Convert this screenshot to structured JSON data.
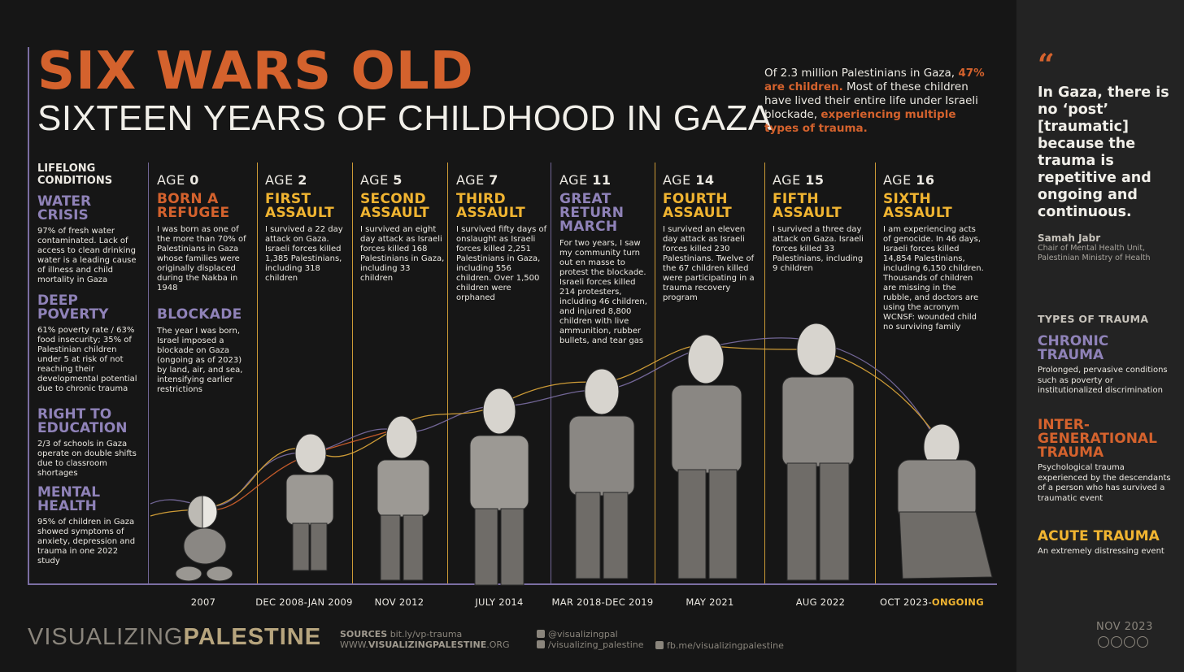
{
  "title": "SIX WARS OLD",
  "subtitle": "SIXTEEN YEARS OF CHILDHOOD IN GAZA",
  "intro": {
    "part1": "Of 2.3 million Palestinians in Gaza, ",
    "highlight1": "47% are children.",
    "part2": " Most of these children have lived their entire life under Israeli blockade, ",
    "highlight2": "experiencing multiple types of trauma."
  },
  "lifelong": {
    "heading": "LIFELONG CONDITIONS",
    "items": [
      {
        "title": "WATER CRISIS",
        "text": "97% of fresh water contaminated. Lack of access to clean drinking water is a leading cause of illness and child mortality in Gaza"
      },
      {
        "title": "DEEP POVERTY",
        "text": "61% poverty rate / 63% food insecurity; 35% of Palestinian children under 5 at risk of not reaching their developmental potential due to chronic trauma"
      },
      {
        "title": "RIGHT TO EDUCATION",
        "text": "2/3 of schools in Gaza operate on double shifts due to classroom shortages"
      },
      {
        "title": "MENTAL HEALTH",
        "text": "95% of children in Gaza showed symptoms of anxiety, depression and trauma in one 2022 study"
      }
    ]
  },
  "age_label": "AGE",
  "stages": [
    {
      "age": "0",
      "title": "BORN A REFUGEE",
      "color": "#d4622d",
      "text": "I was born as one of the more than 70% of Palestinians in Gaza whose families were originally displaced during the Nakba in 1948",
      "title2": "BLOCKADE",
      "text2": "The year I was born, Israel imposed a blockade on Gaza (ongoing as of 2023) by land, air, and sea, intensifying earlier restrictions",
      "date": "2007"
    },
    {
      "age": "2",
      "title": "FIRST ASSAULT",
      "color": "#f0b431",
      "text": "I survived a 22 day attack on Gaza. Israeli forces killed 1,385 Palestinians, including 318 children",
      "date": "DEC 2008-JAN 2009"
    },
    {
      "age": "5",
      "title": "SECOND ASSAULT",
      "color": "#f0b431",
      "text": "I survived an eight day attack as Israeli forces killed 168 Palestinians in Gaza, including 33 children",
      "date": "NOV 2012"
    },
    {
      "age": "7",
      "title": "THIRD ASSAULT",
      "color": "#f0b431",
      "text": "I survived fifty days of onslaught as Israeli forces killed 2,251 Palestinians in Gaza, including 556 children. Over 1,500 children were orphaned",
      "date": "JULY 2014"
    },
    {
      "age": "11",
      "title": "GREAT RETURN MARCH",
      "color": "#8f82b8",
      "text": "For two years, I saw my community turn out en masse to protest the blockade. Israeli forces killed 214 protesters, including 46 children, and injured 8,800 children with live ammunition, rubber bullets, and tear gas",
      "date": "MAR 2018-DEC 2019"
    },
    {
      "age": "14",
      "title": "FOURTH ASSAULT",
      "color": "#f0b431",
      "text": "I survived an eleven day attack as Israeli forces killed 230 Palestinians. Twelve of the 67 children killed were participating in a trauma recovery program",
      "date": "MAY 2021"
    },
    {
      "age": "15",
      "title": "FIFTH ASSAULT",
      "color": "#f0b431",
      "text": "I survived a three day attack on Gaza. Israeli forces killed 33 Palestinians, including 9 children",
      "date": "AUG 2022"
    },
    {
      "age": "16",
      "title": "SIXTH ASSAULT",
      "color": "#f0b431",
      "text": "I am experiencing acts of genocide. In 46 days, Israeli forces killed 14,854 Palestinians, including 6,150 children. Thousands of children are missing in the rubble, and doctors are using the acronym WCNSF: wounded child no surviving family",
      "date": "OCT 2023-",
      "date_highlight": "ONGOING"
    }
  ],
  "brand": {
    "light": "VISUALIZING",
    "bold": "PALESTINE"
  },
  "footer": {
    "sources_label": "SOURCES",
    "sources_link": "bit.ly/vp-trauma",
    "site_prefix": "WWW.",
    "site_bold": "VISUALIZINGPALESTINE",
    "site_suffix": ".ORG",
    "twitter": "@visualizingpal",
    "instagram": "/visualizing_palestine",
    "facebook": "fb.me/visualizingpalestine"
  },
  "quote": {
    "mark": "“",
    "text": "In Gaza, there is no ‘post’ [traumatic] because the trauma is repetitive and ongoing and continuous.",
    "author": "Samah Jabr",
    "role": "Chair of Mental Health Unit, Palestinian Ministry of Health"
  },
  "trauma_types": {
    "heading": "TYPES OF TRAUMA",
    "items": [
      {
        "title": "CHRONIC TRAUMA",
        "color": "#8f82b8",
        "text": "Prolonged, pervasive conditions such as poverty or institutionalized discrimination"
      },
      {
        "title": "INTER-GENERATIONAL TRAUMA",
        "color": "#d4622d",
        "text": "Psychological trauma experienced by the descendants of a person who has survived a traumatic event"
      },
      {
        "title": "ACUTE TRAUMA",
        "color": "#f0b431",
        "text": "An extremely distressing event"
      }
    ]
  },
  "date_stamp": "NOV 2023",
  "icons": [
    "quote-icon",
    "twitter-icon",
    "instagram-icon",
    "facebook-icon",
    "creative-commons-icon",
    "child-figure-icon"
  ]
}
